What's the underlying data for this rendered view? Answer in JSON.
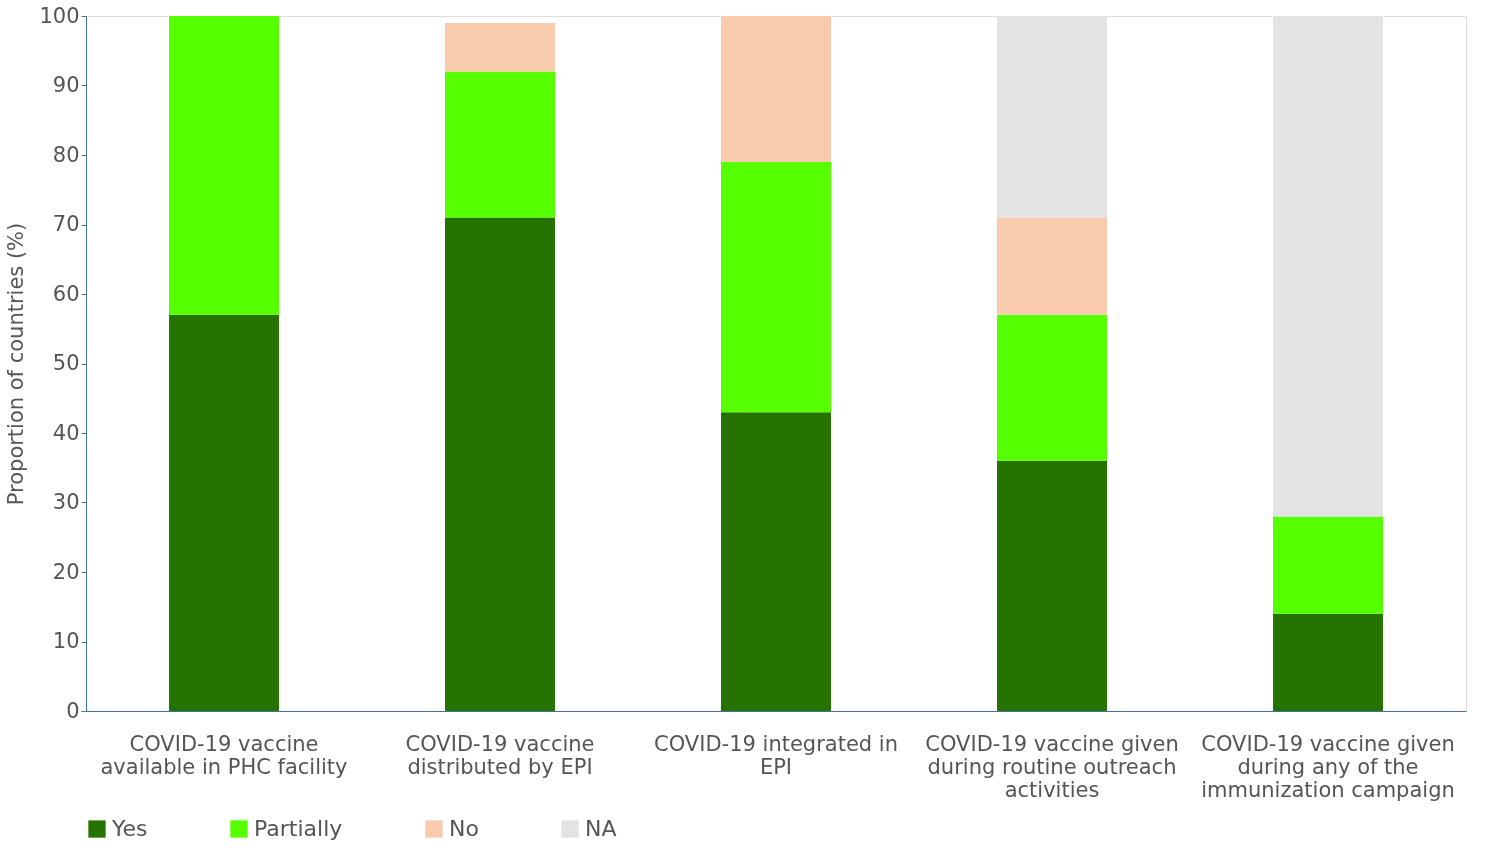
{
  "chart_data": {
    "type": "bar",
    "stacked": true,
    "ylabel": "Proportion of countries (%)",
    "categories": [
      "COVID-19 vaccine available in PHC facility",
      "COVID-19 vaccine distributed by EPI",
      "COVID-19 integrated in EPI",
      "COVID-19 vaccine given during routine outreach activities",
      "COVID-19 vaccine given during any of the immunization campaign"
    ],
    "series": [
      {
        "name": "Yes",
        "color": "#267300",
        "values": [
          57,
          71,
          43,
          36,
          14
        ]
      },
      {
        "name": "Partially",
        "color": "#55ff00",
        "values": [
          43,
          21,
          36,
          21,
          14
        ]
      },
      {
        "name": "No",
        "color": "#f8cbad",
        "values": [
          0,
          7,
          21,
          14,
          0
        ]
      },
      {
        "name": "NA",
        "color": "#e3e3e3",
        "values": [
          0,
          0,
          0,
          29,
          72
        ]
      }
    ],
    "ylim": [
      0,
      100
    ],
    "yticks": [
      0,
      10,
      20,
      30,
      40,
      50,
      60,
      70,
      80,
      90,
      100
    ],
    "grid": false,
    "legend": "bottom"
  }
}
